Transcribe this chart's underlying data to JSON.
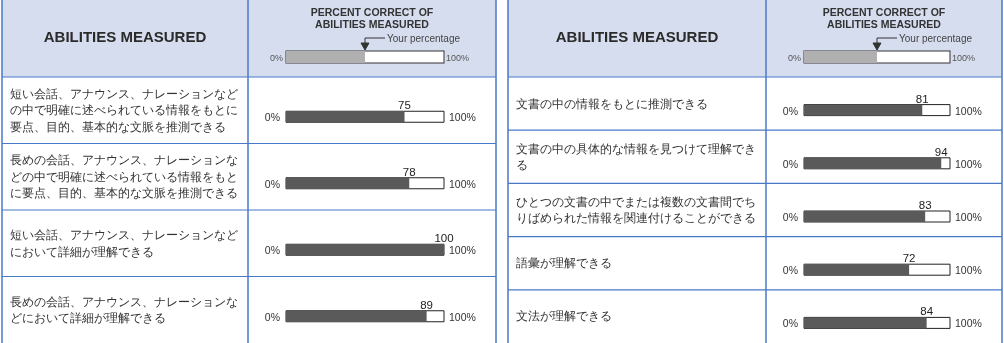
{
  "chart_data": [
    {
      "type": "bar",
      "orientation": "horizontal",
      "title": "PERCENT CORRECT OF ABILITIES MEASURED",
      "ylabel": "ABILITIES MEASURED",
      "annotations": [
        "Your percentage",
        "0%",
        "100%"
      ],
      "categories": [
        "短い会話、アナウンス、ナレーションなどの中で明確に述べられている情報をもとに要点、目的、基本的な文脈を推測できる",
        "長めの会話、アナウンス、ナレーションなどの中で明確に述べられている情報をもとに要点、目的、基本的な文脈を推測できる",
        "短い会話、アナウンス、ナレーションなどにおいて詳細が理解できる",
        "長めの会話、アナウンス、ナレーションなどにおいて詳細が理解できる"
      ],
      "values": [
        75,
        78,
        100,
        89
      ],
      "color": "#5a5a5a",
      "xlim": [
        0,
        100
      ],
      "data_labels": true
    },
    {
      "type": "bar",
      "orientation": "horizontal",
      "title": "PERCENT CORRECT OF ABILITIES MEASURED",
      "ylabel": "ABILITIES MEASURED",
      "annotations": [
        "Your percentage",
        "0%",
        "100%"
      ],
      "categories": [
        "文書の中の情報をもとに推測できる",
        "文書の中の具体的な情報を見つけて理解できる",
        "ひとつの文書の中でまたは複数の文書間でちりばめられた情報を関連付けることができる",
        "語彙が理解できる",
        "文法が理解できる"
      ],
      "values": [
        81,
        94,
        83,
        72,
        84
      ],
      "color": "#5a5a5a",
      "xlim": [
        0,
        100
      ],
      "data_labels": true
    }
  ]
}
